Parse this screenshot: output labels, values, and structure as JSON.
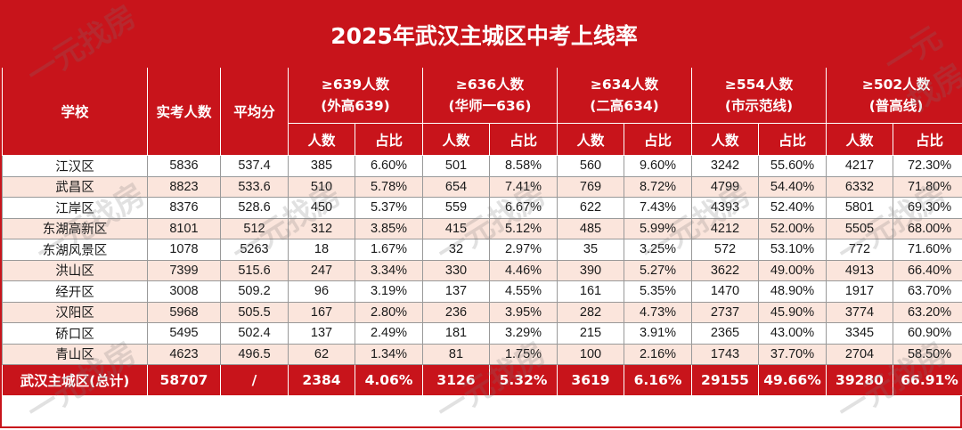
{
  "title": "2025年武汉主城区中考上线率",
  "watermark": "一元找房",
  "header": {
    "school": "学校",
    "exam_count": "实考人数",
    "avg_score": "平均分",
    "groups": [
      {
        "line1": "≥639人数",
        "line2": "(外高639)"
      },
      {
        "line1": "≥636人数",
        "line2": "(华师一636)"
      },
      {
        "line1": "≥634人数",
        "line2": "(二高634)"
      },
      {
        "line1": "≥554人数",
        "line2": "(市示范线)"
      },
      {
        "line1": "≥502人数",
        "line2": "(普高线)"
      }
    ],
    "sub_count": "人数",
    "sub_ratio": "占比"
  },
  "rows": [
    {
      "school": "江汉区",
      "exam": "5836",
      "avg": "537.4",
      "c639": "385",
      "r639": "6.60%",
      "c636": "501",
      "r636": "8.58%",
      "c634": "560",
      "r634": "9.60%",
      "c554": "3242",
      "r554": "55.60%",
      "c502": "4217",
      "r502": "72.30%"
    },
    {
      "school": "武昌区",
      "exam": "8823",
      "avg": "533.6",
      "c639": "510",
      "r639": "5.78%",
      "c636": "654",
      "r636": "7.41%",
      "c634": "769",
      "r634": "8.72%",
      "c554": "4799",
      "r554": "54.40%",
      "c502": "6332",
      "r502": "71.80%"
    },
    {
      "school": "江岸区",
      "exam": "8376",
      "avg": "528.6",
      "c639": "450",
      "r639": "5.37%",
      "c636": "559",
      "r636": "6.67%",
      "c634": "622",
      "r634": "7.43%",
      "c554": "4393",
      "r554": "52.40%",
      "c502": "5801",
      "r502": "69.30%"
    },
    {
      "school": "东湖高新区",
      "exam": "8101",
      "avg": "512",
      "c639": "312",
      "r639": "3.85%",
      "c636": "415",
      "r636": "5.12%",
      "c634": "485",
      "r634": "5.99%",
      "c554": "4212",
      "r554": "52.00%",
      "c502": "5505",
      "r502": "68.00%"
    },
    {
      "school": "东湖风景区",
      "exam": "1078",
      "avg": "5263",
      "c639": "18",
      "r639": "1.67%",
      "c636": "32",
      "r636": "2.97%",
      "c634": "35",
      "r634": "3.25%",
      "c554": "572",
      "r554": "53.10%",
      "c502": "772",
      "r502": "71.60%"
    },
    {
      "school": "洪山区",
      "exam": "7399",
      "avg": "515.6",
      "c639": "247",
      "r639": "3.34%",
      "c636": "330",
      "r636": "4.46%",
      "c634": "390",
      "r634": "5.27%",
      "c554": "3622",
      "r554": "49.00%",
      "c502": "4913",
      "r502": "66.40%"
    },
    {
      "school": "经开区",
      "exam": "3008",
      "avg": "509.2",
      "c639": "96",
      "r639": "3.19%",
      "c636": "137",
      "r636": "4.55%",
      "c634": "161",
      "r634": "5.35%",
      "c554": "1470",
      "r554": "48.90%",
      "c502": "1917",
      "r502": "63.70%"
    },
    {
      "school": "汉阳区",
      "exam": "5968",
      "avg": "505.5",
      "c639": "167",
      "r639": "2.80%",
      "c636": "236",
      "r636": "3.95%",
      "c634": "282",
      "r634": "4.73%",
      "c554": "2737",
      "r554": "45.90%",
      "c502": "3774",
      "r502": "63.20%"
    },
    {
      "school": "硚口区",
      "exam": "5495",
      "avg": "502.4",
      "c639": "137",
      "r639": "2.49%",
      "c636": "181",
      "r636": "3.29%",
      "c634": "215",
      "r634": "3.91%",
      "c554": "2365",
      "r554": "43.00%",
      "c502": "3345",
      "r502": "60.90%"
    },
    {
      "school": "青山区",
      "exam": "4623",
      "avg": "496.5",
      "c639": "62",
      "r639": "1.34%",
      "c636": "81",
      "r636": "1.75%",
      "c634": "100",
      "r634": "2.16%",
      "c554": "1743",
      "r554": "37.70%",
      "c502": "2704",
      "r502": "58.50%"
    }
  ],
  "total": {
    "school": "武汉主城区(总计)",
    "exam": "58707",
    "avg": "/",
    "c639": "2384",
    "r639": "4.06%",
    "c636": "3126",
    "r636": "5.32%",
    "c634": "3619",
    "r634": "6.16%",
    "c554": "29155",
    "r554": "49.66%",
    "c502": "39280",
    "r502": "66.91%"
  }
}
